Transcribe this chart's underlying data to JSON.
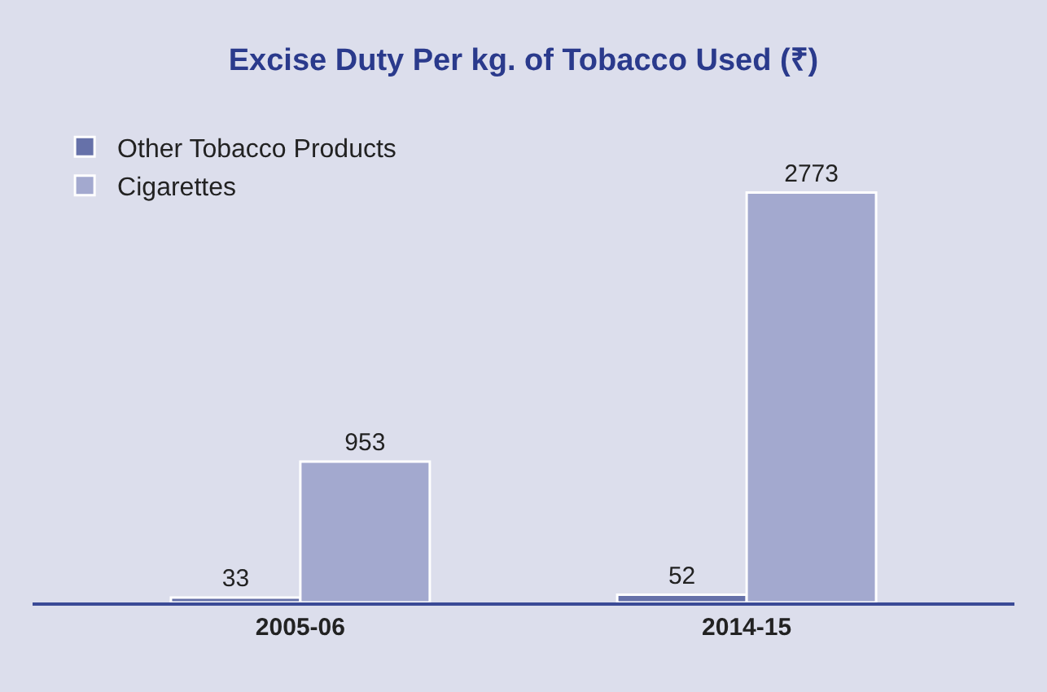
{
  "chart_data": {
    "type": "bar",
    "title": "Excise Duty Per kg. of Tobacco Used (₹)",
    "categories": [
      "2005-06",
      "2014-15"
    ],
    "series": [
      {
        "name": "Other Tobacco Products",
        "color": "#6671a9",
        "values": [
          33,
          52
        ]
      },
      {
        "name": "Cigarettes",
        "color": "#a3a9cf",
        "values": [
          953,
          2773
        ]
      }
    ],
    "data_labels": true,
    "legend": "top left",
    "grid": false
  }
}
